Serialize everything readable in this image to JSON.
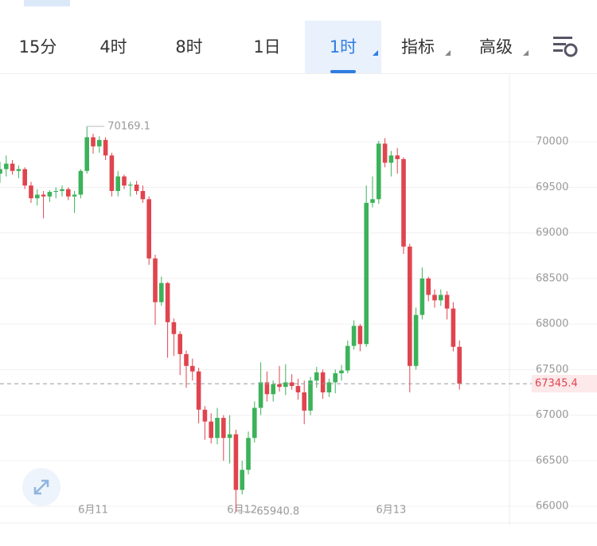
{
  "tabs": [
    "15分",
    "4时",
    "8时",
    "1日",
    "1时",
    "指标",
    "高级"
  ],
  "chart_data": {
    "type": "candlestick",
    "categories": [
      null,
      null,
      null,
      null,
      null,
      null,
      null,
      null,
      null,
      null,
      null,
      null,
      null,
      null,
      null,
      "6月11",
      null,
      null,
      null,
      null,
      null,
      null,
      null,
      null,
      null,
      null,
      null,
      null,
      null,
      null,
      null,
      null,
      null,
      null,
      null,
      null,
      null,
      null,
      null,
      "6月12",
      null,
      null,
      null,
      null,
      null,
      null,
      null,
      null,
      null,
      null,
      null,
      null,
      null,
      null,
      null,
      null,
      null,
      null,
      null,
      null,
      null,
      null,
      null,
      "6月13",
      null,
      null,
      null,
      null,
      null,
      null,
      null,
      null,
      null,
      null,
      null
    ],
    "open": [
      69650,
      69700,
      69760,
      69680,
      69700,
      69520,
      69380,
      69420,
      69400,
      69450,
      69460,
      69480,
      69400,
      69420,
      69680,
      70050,
      69950,
      70020,
      69850,
      69460,
      69620,
      69520,
      69530,
      69460,
      69370,
      68720,
      68240,
      68450,
      68020,
      67890,
      67670,
      67540,
      67480,
      67060,
      66930,
      66750,
      66970,
      66750,
      66790,
      66180,
      66400,
      66750,
      67080,
      67360,
      67230,
      67340,
      67310,
      67360,
      67320,
      67250,
      67050,
      67380,
      67470,
      67250,
      67360,
      67460,
      67490,
      67760,
      67980,
      67780,
      69330,
      69370,
      69980,
      69770,
      69850,
      69810,
      68850,
      67540,
      68100,
      68500,
      68320,
      68260,
      68320,
      68170,
      67750
    ],
    "high": [
      69780,
      69850,
      69800,
      69740,
      69720,
      69560,
      69480,
      69460,
      69470,
      69500,
      69520,
      69500,
      69460,
      69700,
      70169.1,
      70090,
      70060,
      70050,
      69880,
      69680,
      69640,
      69560,
      69570,
      69520,
      69400,
      68760,
      68520,
      68460,
      68060,
      67920,
      67710,
      67620,
      67520,
      67100,
      67020,
      67080,
      67000,
      67000,
      66840,
      66500,
      66820,
      67150,
      67580,
      67480,
      67380,
      67540,
      67560,
      67450,
      67400,
      67380,
      67420,
      67530,
      67500,
      67400,
      67500,
      67550,
      67820,
      68040,
      68000,
      69520,
      69620,
      70010,
      70040,
      69900,
      69930,
      69830,
      68880,
      68180,
      68620,
      68520,
      68380,
      68380,
      68360,
      68240,
      67820
    ],
    "low": [
      69550,
      69620,
      69640,
      69600,
      69480,
      69330,
      69300,
      69160,
      69340,
      69380,
      69400,
      69360,
      69220,
      69380,
      69650,
      69870,
      69880,
      69800,
      69400,
      69400,
      69480,
      69400,
      69420,
      69330,
      68650,
      67990,
      68200,
      67630,
      67650,
      67440,
      67300,
      67380,
      66910,
      66730,
      66690,
      66680,
      66500,
      66470,
      65940.8,
      66130,
      66350,
      66700,
      67000,
      67150,
      67150,
      67260,
      67220,
      67280,
      67170,
      66900,
      67000,
      67300,
      67180,
      67200,
      67240,
      67380,
      67460,
      67720,
      67700,
      67750,
      69280,
      69320,
      69720,
      69620,
      69650,
      68770,
      67250,
      67500,
      68050,
      68250,
      68180,
      68200,
      68050,
      67700,
      67280
    ],
    "close": [
      69700,
      69760,
      69680,
      69700,
      69520,
      69380,
      69420,
      69400,
      69450,
      69460,
      69480,
      69400,
      69420,
      69680,
      70050,
      69950,
      70020,
      69850,
      69460,
      69620,
      69520,
      69530,
      69460,
      69370,
      68720,
      68240,
      68450,
      68020,
      67890,
      67670,
      67540,
      67480,
      67060,
      66930,
      66750,
      66970,
      66750,
      66790,
      66180,
      66400,
      66750,
      67080,
      67360,
      67230,
      67340,
      67310,
      67360,
      67320,
      67250,
      67050,
      67380,
      67470,
      67250,
      67360,
      67460,
      67490,
      67760,
      67980,
      67780,
      69330,
      69370,
      69980,
      69770,
      69850,
      69810,
      68850,
      67540,
      68100,
      68500,
      68320,
      68260,
      68320,
      68170,
      67750,
      67345.4
    ],
    "up_color": "#3cb25a",
    "down_color": "#e0444e",
    "ylim": [
      65800,
      70700
    ],
    "yticks": [
      66000,
      66500,
      67000,
      67500,
      68000,
      68500,
      69000,
      69500,
      70000
    ],
    "grid": true
  }
}
